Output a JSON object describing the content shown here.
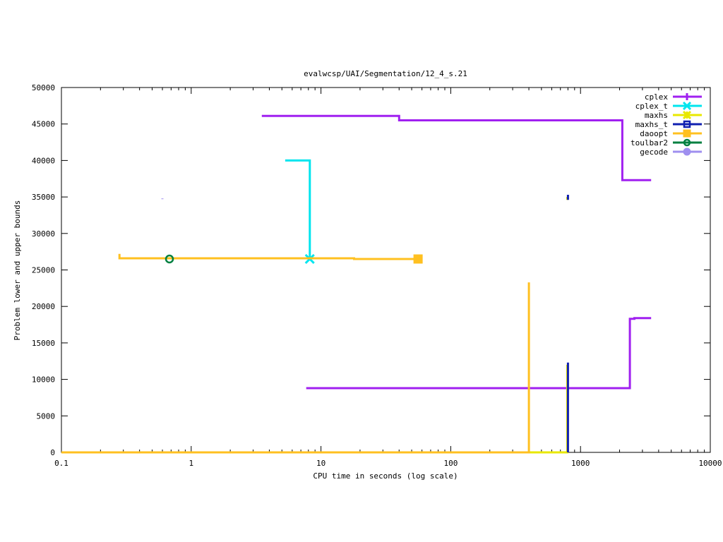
{
  "chart_data": {
    "type": "line",
    "title": "evalwcsp/UAI/Segmentation/12_4_s.21",
    "xlabel": "CPU time in seconds (log scale)",
    "ylabel": "Problem lower and upper bounds",
    "x_scale": "log",
    "xlim": [
      0.1,
      10000
    ],
    "ylim": [
      0,
      50000
    ],
    "x_ticks": [
      0.1,
      1,
      10,
      100,
      1000,
      10000
    ],
    "x_tick_labels": [
      "0.1",
      "1",
      "10",
      "100",
      "1000",
      "10000"
    ],
    "y_ticks": [
      0,
      5000,
      10000,
      15000,
      20000,
      25000,
      30000,
      35000,
      40000,
      45000,
      50000
    ],
    "y_tick_labels": [
      "0",
      "5000",
      "10000",
      "15000",
      "20000",
      "25000",
      "30000",
      "35000",
      "40000",
      "45000",
      "50000"
    ],
    "legend_position": "top-right",
    "grid": false,
    "series": [
      {
        "name": "cplex",
        "color": "#a020f0",
        "marker": "plus",
        "segments": [
          [
            [
              3.5,
              46100
            ],
            [
              40,
              46100
            ],
            [
              40,
              45500
            ],
            [
              2100,
              45500
            ],
            [
              2100,
              37300
            ],
            [
              3500,
              37300
            ]
          ],
          [
            [
              7.7,
              8800
            ],
            [
              2400,
              8800
            ],
            [
              2400,
              18300
            ],
            [
              2600,
              18300
            ],
            [
              2600,
              18400
            ],
            [
              3500,
              18400
            ]
          ]
        ],
        "markers": []
      },
      {
        "name": "cplex_t",
        "color": "#00e5ee",
        "marker": "x",
        "segments": [
          [
            [
              5.3,
              40000
            ],
            [
              8.2,
              40000
            ],
            [
              8.2,
              26500
            ]
          ]
        ],
        "markers": [
          [
            8.2,
            26500
          ]
        ]
      },
      {
        "name": "maxhs",
        "color": "#e8e800",
        "marker": "star",
        "segments": [
          [
            [
              0.1,
              0
            ],
            [
              790,
              0
            ],
            [
              790,
              12000
            ]
          ],
          [
            [
              790,
              35000
            ],
            [
              790,
              34600
            ]
          ]
        ],
        "markers": []
      },
      {
        "name": "maxhs_t",
        "color": "#1020b0",
        "marker": "square-open",
        "segments": [
          [
            [
              800,
              0
            ],
            [
              800,
              12300
            ]
          ],
          [
            [
              800,
              35300
            ],
            [
              800,
              34600
            ]
          ]
        ],
        "markers": []
      },
      {
        "name": "daoopt",
        "color": "#ffc020",
        "marker": "square-filled",
        "segments": [
          [
            [
              0.28,
              27200
            ],
            [
              0.28,
              26600
            ],
            [
              18,
              26600
            ],
            [
              18,
              26500
            ],
            [
              56,
              26500
            ]
          ],
          [
            [
              0.1,
              0
            ],
            [
              400,
              0
            ],
            [
              400,
              23300
            ]
          ]
        ],
        "markers": [
          [
            56,
            26500
          ]
        ]
      },
      {
        "name": "toulbar2",
        "color": "#008040",
        "marker": "circle-open",
        "segments": [],
        "markers": [
          [
            0.68,
            26500
          ]
        ]
      },
      {
        "name": "gecode",
        "color": "#9f8fef",
        "marker": "circle-filled",
        "segments": [
          [
            [
              0.6,
              34700
            ],
            [
              0.6,
              34800
            ]
          ]
        ],
        "markers": []
      }
    ]
  }
}
